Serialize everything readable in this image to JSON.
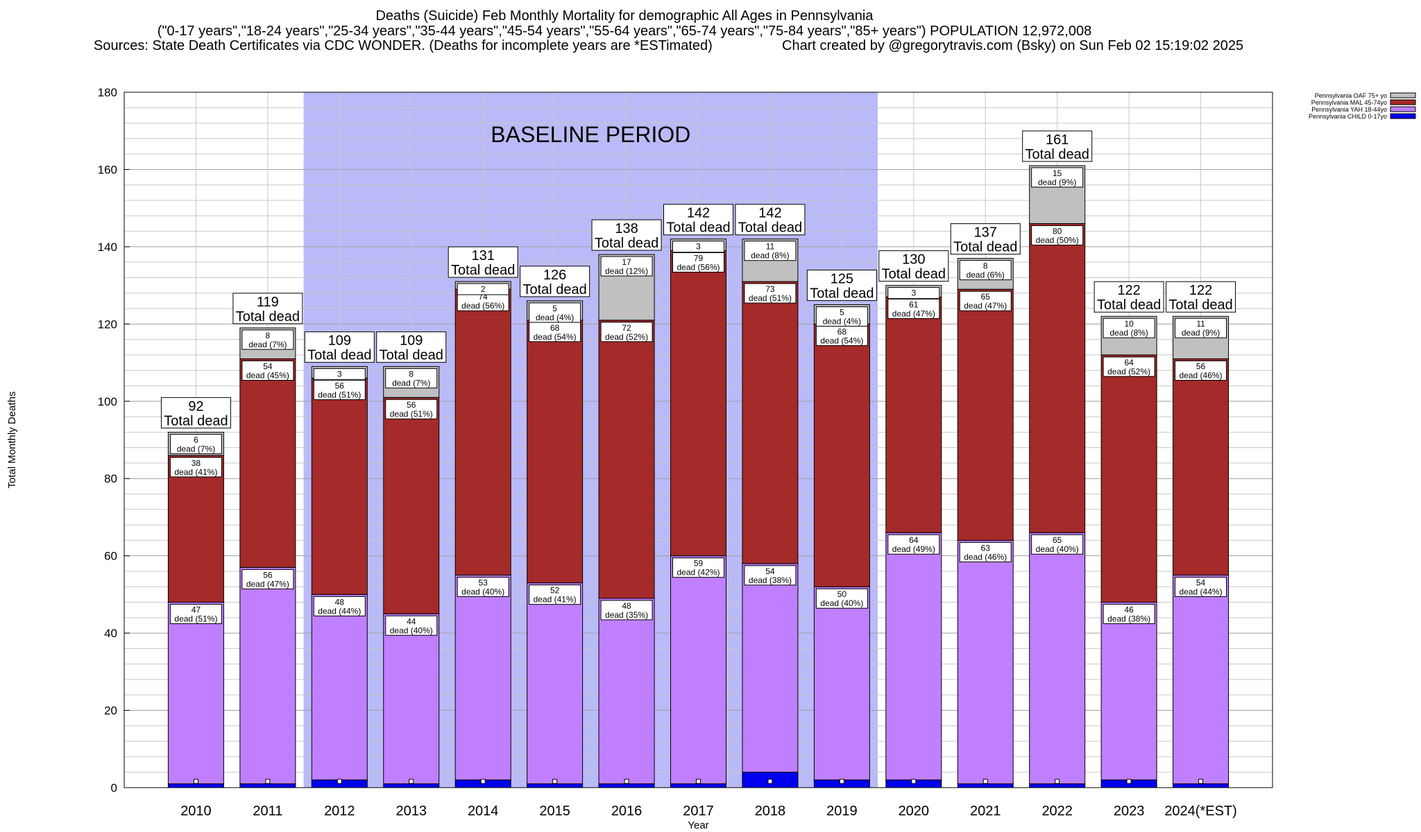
{
  "header": {
    "title": "Deaths (Suicide) Feb Monthly Mortality for demographic All Ages in Pennsylvania",
    "subtitle": "(\"0-17 years\",\"18-24 years\",\"25-34 years\",\"35-44 years\",\"45-54 years\",\"55-64 years\",\"65-74 years\",\"75-84 years\",\"85+ years\") POPULATION 12,972,008",
    "sources": "Sources: State Death Certificates via CDC WONDER. (Deaths for incomplete years are *ESTimated)",
    "credit": "Chart created by @gregorytravis.com (Bsky) on Sun Feb 02 15:19:02 2025"
  },
  "colors": {
    "child": "#0000ee",
    "yah": "#bf7fff",
    "mal": "#a52a2a",
    "oaf": "#c0c0c0",
    "baseline": "#babaf8",
    "grid": "#c8c8c8"
  },
  "chart_data": {
    "type": "bar",
    "stacked": true,
    "title": "Deaths (Suicide) Feb Monthly Mortality for demographic All Ages in Pennsylvania",
    "xlabel": "Year",
    "ylabel": "Total Monthly Deaths",
    "ylim": [
      0,
      180
    ],
    "yticks": [
      0,
      20,
      40,
      60,
      80,
      100,
      120,
      140,
      160,
      180
    ],
    "grid": true,
    "legend_position": "top-right",
    "categories": [
      "2010",
      "2011",
      "2012",
      "2013",
      "2014",
      "2015",
      "2016",
      "2017",
      "2018",
      "2019",
      "2020",
      "2021",
      "2022",
      "2023",
      "2024(*EST)"
    ],
    "series": [
      {
        "name": "Pennsylvania CHILD 0-17yo",
        "color": "#0000ee",
        "values": [
          1,
          1,
          2,
          1,
          2,
          1,
          1,
          1,
          4,
          2,
          2,
          1,
          1,
          2,
          1
        ]
      },
      {
        "name": "Pennsylvania YAH 18-44yo",
        "color": "#bf7fff",
        "values": [
          47,
          56,
          48,
          44,
          53,
          52,
          48,
          59,
          54,
          50,
          64,
          63,
          65,
          46,
          54
        ],
        "percent_labels": [
          "51%",
          "47%",
          "44%",
          "40%",
          "40%",
          "41%",
          "35%",
          "42%",
          "38%",
          "40%",
          "49%",
          "46%",
          "40%",
          "38%",
          "44%"
        ]
      },
      {
        "name": "Pennsylvania MAL 45-74yo",
        "color": "#a52a2a",
        "values": [
          38,
          54,
          56,
          56,
          74,
          68,
          72,
          79,
          73,
          68,
          61,
          65,
          80,
          64,
          56
        ],
        "percent_labels": [
          "41%",
          "45%",
          "51%",
          "51%",
          "56%",
          "54%",
          "52%",
          "56%",
          "51%",
          "54%",
          "47%",
          "47%",
          "50%",
          "52%",
          "46%"
        ]
      },
      {
        "name": "Pennsylvania OAF 75+ yo",
        "color": "#c0c0c0",
        "values": [
          6,
          8,
          3,
          8,
          2,
          5,
          17,
          3,
          11,
          5,
          3,
          8,
          15,
          10,
          11
        ],
        "percent_labels": [
          "7%",
          "7%",
          "",
          "7%",
          "",
          "4%",
          "12%",
          "",
          "8%",
          "4%",
          "",
          "6%",
          "9%",
          "8%",
          "9%"
        ]
      }
    ],
    "totals": [
      92,
      119,
      109,
      109,
      131,
      126,
      138,
      142,
      142,
      125,
      130,
      137,
      161,
      122,
      122
    ],
    "total_label_suffix": "Total dead",
    "segment_label_word": "dead",
    "annotations": [
      {
        "text": "BASELINE PERIOD",
        "x_from": "2012",
        "x_to": "2019"
      }
    ]
  }
}
